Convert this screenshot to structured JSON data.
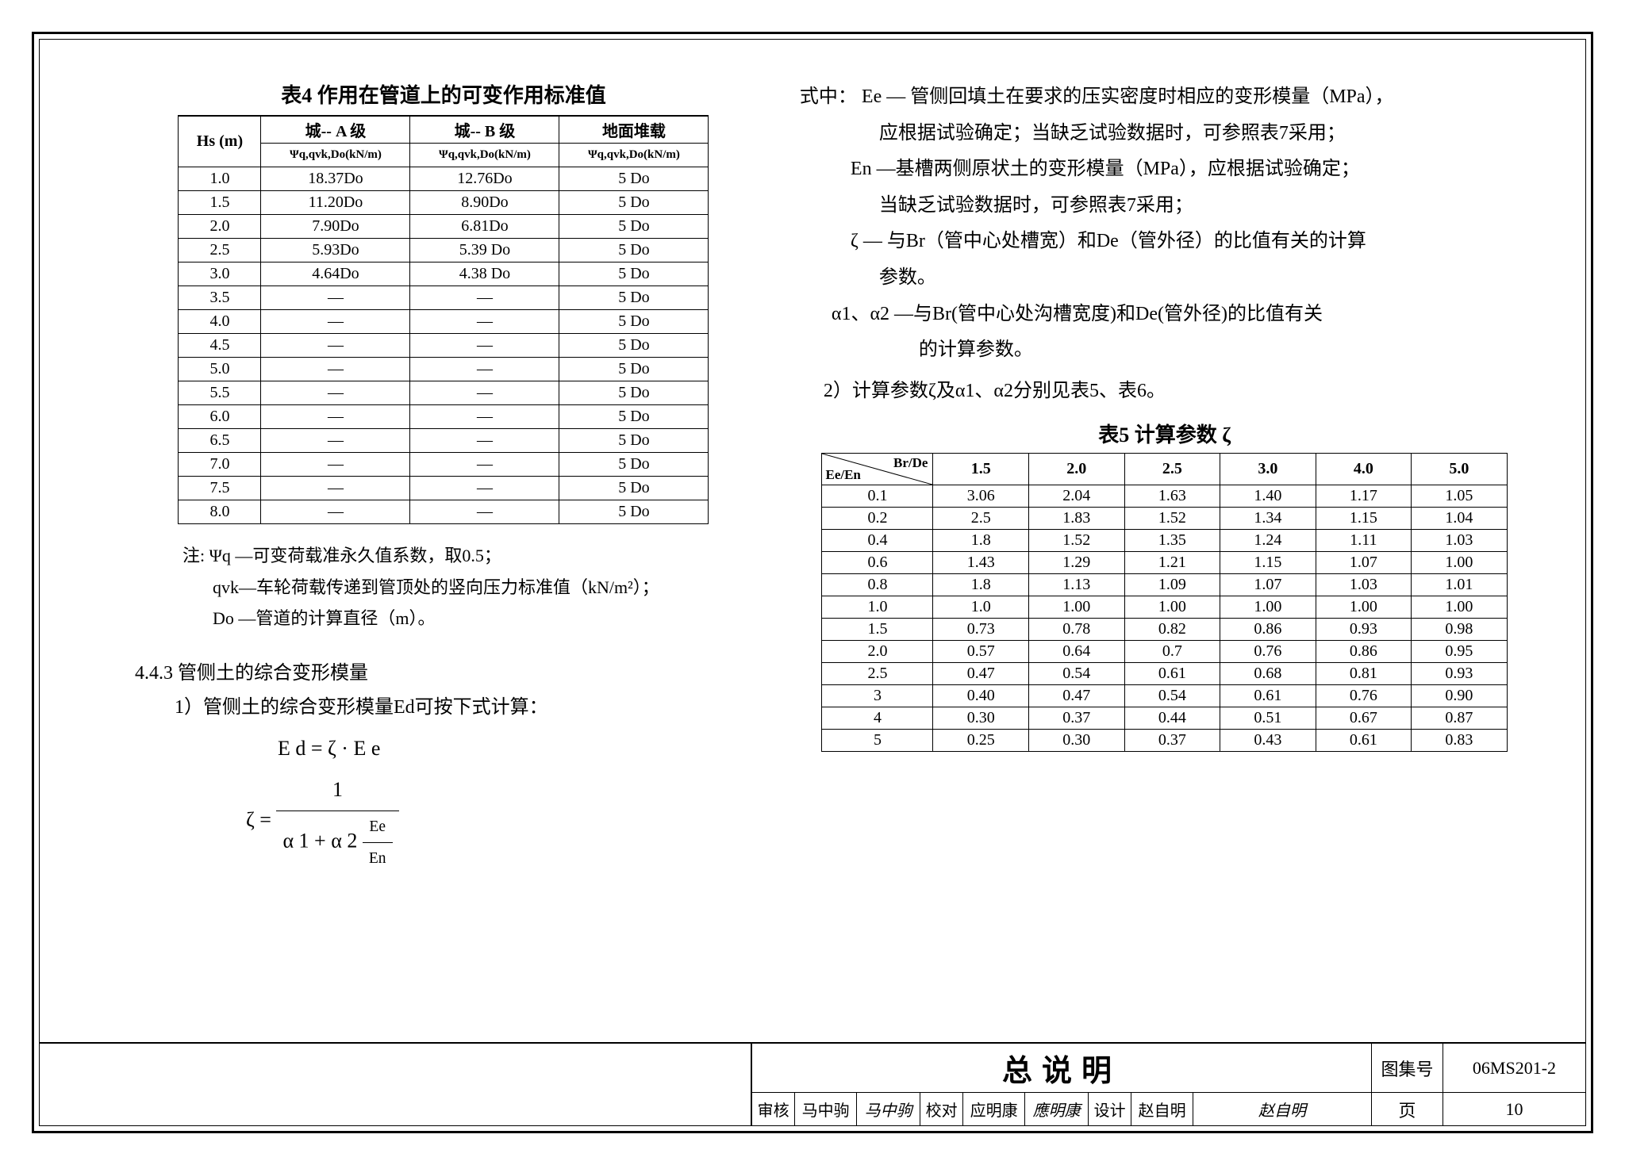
{
  "table4": {
    "title": "表4  作用在管道上的可变作用标准值",
    "header_row1": [
      "Hs  (m)",
      "城-- A 级",
      "城-- B 级",
      "地面堆载"
    ],
    "header_row2": [
      "Ψq,qvk,Do(kN/m)",
      "Ψq,qvk,Do(kN/m)",
      "Ψq,qvk,Do(kN/m)"
    ],
    "rows": [
      [
        "1.0",
        "18.37Do",
        "12.76Do",
        "5 Do"
      ],
      [
        "1.5",
        "11.20Do",
        "8.90Do",
        "5 Do"
      ],
      [
        "2.0",
        "7.90Do",
        "6.81Do",
        "5 Do"
      ],
      [
        "2.5",
        "5.93Do",
        "5.39 Do",
        "5 Do"
      ],
      [
        "3.0",
        "4.64Do",
        "4.38 Do",
        "5 Do"
      ],
      [
        "3.5",
        "—",
        "—",
        "5 Do"
      ],
      [
        "4.0",
        "—",
        "—",
        "5 Do"
      ],
      [
        "4.5",
        "—",
        "—",
        "5 Do"
      ],
      [
        "5.0",
        "—",
        "—",
        "5 Do"
      ],
      [
        "5.5",
        "—",
        "—",
        "5 Do"
      ],
      [
        "6.0",
        "—",
        "—",
        "5 Do"
      ],
      [
        "6.5",
        "—",
        "—",
        "5 Do"
      ],
      [
        "7.0",
        "—",
        "—",
        "5 Do"
      ],
      [
        "7.5",
        "—",
        "—",
        "5 Do"
      ],
      [
        "8.0",
        "—",
        "—",
        "5 Do"
      ]
    ],
    "note_label": "注:",
    "note1": "Ψq —可变荷载准永久值系数，取0.5；",
    "note2": "qvk—车轮荷载传递到管顶处的竖向压力标准值（kN/m²）；",
    "note3": "Do —管道的计算直径（m）。"
  },
  "section": {
    "heading": "4.4.3  管侧土的综合变形模量",
    "item1": "1）管侧土的综合变形模量Ed可按下式计算：",
    "formula1_lhs": "E d = ζ · E e",
    "formula2_lhs": "ζ  =",
    "formula2_num": "1",
    "formula2_den_a": "α 1 + α 2",
    "formula2_den_frac_num": "Ee",
    "formula2_den_frac_den": "En"
  },
  "right": {
    "p1_label": "式中：",
    "p1": "Ee — 管侧回填土在要求的压实密度时相应的变形模量（MPa），",
    "p1b": "应根据试验确定；当缺乏试验数据时，可参照表7采用；",
    "p2": "En —基槽两侧原状土的变形模量（MPa），应根据试验确定；",
    "p2b": "当缺乏试验数据时，可参照表7采用；",
    "p3": "ζ — 与Br（管中心处槽宽）和De（管外径）的比值有关的计算",
    "p3b": "参数。",
    "p4": "α1、α2 —与Br(管中心处沟槽宽度)和De(管外径)的比值有关",
    "p4b": "的计算参数。",
    "p5": "2）计算参数ζ及α1、α2分别见表5、表6。"
  },
  "table5": {
    "title": "表5    计算参数 ζ",
    "diag_left": "Ee/En",
    "diag_right": "Br/De",
    "cols": [
      "1.5",
      "2.0",
      "2.5",
      "3.0",
      "4.0",
      "5.0"
    ],
    "rows": [
      [
        "0.1",
        "3.06",
        "2.04",
        "1.63",
        "1.40",
        "1.17",
        "1.05"
      ],
      [
        "0.2",
        "2.5",
        "1.83",
        "1.52",
        "1.34",
        "1.15",
        "1.04"
      ],
      [
        "0.4",
        "1.8",
        "1.52",
        "1.35",
        "1.24",
        "1.11",
        "1.03"
      ],
      [
        "0.6",
        "1.43",
        "1.29",
        "1.21",
        "1.15",
        "1.07",
        "1.00"
      ],
      [
        "0.8",
        "1.8",
        "1.13",
        "1.09",
        "1.07",
        "1.03",
        "1.01"
      ],
      [
        "1.0",
        "1.0",
        "1.00",
        "1.00",
        "1.00",
        "1.00",
        "1.00"
      ],
      [
        "1.5",
        "0.73",
        "0.78",
        "0.82",
        "0.86",
        "0.93",
        "0.98"
      ],
      [
        "2.0",
        "0.57",
        "0.64",
        "0.7",
        "0.76",
        "0.86",
        "0.95"
      ],
      [
        "2.5",
        "0.47",
        "0.54",
        "0.61",
        "0.68",
        "0.81",
        "0.93"
      ],
      [
        "3",
        "0.40",
        "0.47",
        "0.54",
        "0.61",
        "0.76",
        "0.90"
      ],
      [
        "4",
        "0.30",
        "0.37",
        "0.44",
        "0.51",
        "0.67",
        "0.87"
      ],
      [
        "5",
        "0.25",
        "0.30",
        "0.37",
        "0.43",
        "0.61",
        "0.83"
      ]
    ]
  },
  "footer": {
    "main_title": "总说明",
    "code_label": "图集号",
    "code": "06MS201-2",
    "approve_label": "审核",
    "approve_name": "马中驹",
    "approve_sig": "马中驹",
    "check_label": "校对",
    "check_name": "应明康",
    "check_sig": "應明康",
    "design_label": "设计",
    "design_name": "赵自明",
    "design_sig": "赵自明",
    "page_label": "页",
    "page_num": "10"
  }
}
